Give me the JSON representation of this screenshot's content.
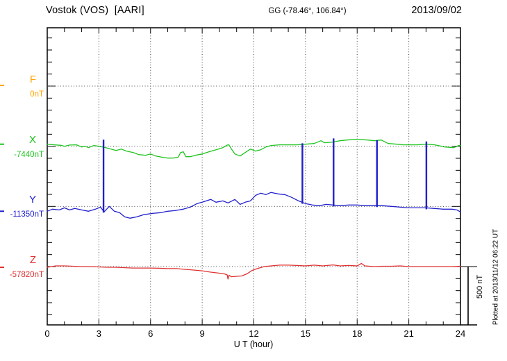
{
  "chart_data": {
    "type": "line",
    "title": "Vostok (VOS)  [AARI]",
    "subtitle": "GG (-78.46°, 106.84°)",
    "date": "2013/09/02",
    "xlabel": "U T (hour)",
    "x_range": [
      0,
      24
    ],
    "x_major_ticks": [
      0,
      3,
      6,
      9,
      12,
      15,
      18,
      21,
      24
    ],
    "x_minor_tick_step_hours": 1,
    "y_tick_step_nT": 100,
    "row_spacing_nT": 500,
    "grid": "dotted vertical line every 3 hours; dotted horizontal line at each component baseline",
    "legend_position": "left margin, one colored label per component",
    "scale_bar": {
      "label": "500 nT",
      "span_nT": 500
    },
    "plotted_at": "Plotted at 2013/11/12 06:22 UT",
    "series": [
      {
        "name": "F",
        "baseline_label": "0nT",
        "baseline_value_nT": 0,
        "color": "#FFA500",
        "edge_mark_offset_nT": 6,
        "points_hour_offset_nT": []
      },
      {
        "name": "X",
        "baseline_label": "-7440nT",
        "baseline_value_nT": -7440,
        "color": "#1FC41F",
        "edge_mark_offset_nT": 17,
        "points_hour_offset_nT": [
          [
            0,
            17
          ],
          [
            0.4,
            12
          ],
          [
            0.8,
            8
          ],
          [
            1,
            0
          ],
          [
            1.3,
            10
          ],
          [
            1.7,
            12
          ],
          [
            2,
            -6
          ],
          [
            2.2,
            0
          ],
          [
            2.4,
            -12
          ],
          [
            2.7,
            6
          ],
          [
            3,
            0
          ],
          [
            3.2,
            -6
          ],
          [
            3.4,
            -12
          ],
          [
            3.7,
            -23
          ],
          [
            4,
            -35
          ],
          [
            4.3,
            -23
          ],
          [
            4.6,
            -40
          ],
          [
            5,
            -52
          ],
          [
            5.3,
            -69
          ],
          [
            5.7,
            -75
          ],
          [
            6,
            -64
          ],
          [
            6.3,
            -81
          ],
          [
            6.7,
            -92
          ],
          [
            7,
            -98
          ],
          [
            7.3,
            -98
          ],
          [
            7.6,
            -92
          ],
          [
            7.75,
            -52
          ],
          [
            7.9,
            -46
          ],
          [
            8.05,
            -87
          ],
          [
            8.3,
            -87
          ],
          [
            8.6,
            -75
          ],
          [
            9,
            -64
          ],
          [
            9.4,
            -46
          ],
          [
            9.8,
            -29
          ],
          [
            10.2,
            -12
          ],
          [
            10.45,
            10
          ],
          [
            10.55,
            12
          ],
          [
            10.7,
            -23
          ],
          [
            10.9,
            -64
          ],
          [
            11.2,
            -81
          ],
          [
            11.5,
            -52
          ],
          [
            11.8,
            -23
          ],
          [
            12.1,
            -40
          ],
          [
            12.4,
            -29
          ],
          [
            12.7,
            -6
          ],
          [
            13,
            6
          ],
          [
            13.5,
            12
          ],
          [
            14,
            12
          ],
          [
            14.5,
            12
          ],
          [
            15,
            17
          ],
          [
            15.5,
            23
          ],
          [
            15.9,
            46
          ],
          [
            16.1,
            29
          ],
          [
            16.4,
            32
          ],
          [
            16.6,
            35
          ],
          [
            17,
            46
          ],
          [
            17.4,
            52
          ],
          [
            18,
            58
          ],
          [
            18.6,
            52
          ],
          [
            19,
            46
          ],
          [
            19.4,
            52
          ],
          [
            19.8,
            23
          ],
          [
            20.3,
            17
          ],
          [
            20.7,
            12
          ],
          [
            21.5,
            12
          ],
          [
            22,
            17
          ],
          [
            22.5,
            12
          ],
          [
            23.1,
            -6
          ],
          [
            23.6,
            -12
          ],
          [
            23.9,
            6
          ],
          [
            24,
            6
          ]
        ]
      },
      {
        "name": "Y",
        "baseline_label": "-11350nT",
        "baseline_value_nT": -11350,
        "color": "#1F1FCC",
        "edge_mark_offset_nT": -40,
        "points_hour_offset_nT": [
          [
            0,
            -40
          ],
          [
            0.3,
            -23
          ],
          [
            0.7,
            -29
          ],
          [
            1,
            -12
          ],
          [
            1.3,
            -29
          ],
          [
            1.6,
            -17
          ],
          [
            2,
            -29
          ],
          [
            2.4,
            -40
          ],
          [
            2.8,
            -23
          ],
          [
            3.1,
            -6
          ],
          [
            3.3,
            -46
          ],
          [
            3.6,
            0
          ],
          [
            3.9,
            -40
          ],
          [
            4.2,
            -52
          ],
          [
            4.5,
            -87
          ],
          [
            4.8,
            -98
          ],
          [
            5.2,
            -87
          ],
          [
            5.6,
            -69
          ],
          [
            6.1,
            -58
          ],
          [
            6.6,
            -52
          ],
          [
            7,
            -40
          ],
          [
            7.4,
            -35
          ],
          [
            7.9,
            -23
          ],
          [
            8.3,
            -6
          ],
          [
            8.7,
            23
          ],
          [
            9,
            35
          ],
          [
            9.5,
            58
          ],
          [
            9.8,
            35
          ],
          [
            10.2,
            46
          ],
          [
            10.5,
            29
          ],
          [
            10.9,
            58
          ],
          [
            11.2,
            17
          ],
          [
            11.5,
            35
          ],
          [
            11.8,
            46
          ],
          [
            12.1,
            92
          ],
          [
            12.4,
            110
          ],
          [
            12.7,
            98
          ],
          [
            13,
            116
          ],
          [
            13.4,
            104
          ],
          [
            13.8,
            98
          ],
          [
            14.2,
            75
          ],
          [
            14.6,
            46
          ],
          [
            15,
            23
          ],
          [
            15.4,
            12
          ],
          [
            15.8,
            6
          ],
          [
            16.2,
            17
          ],
          [
            16.6,
            12
          ],
          [
            17,
            6
          ],
          [
            17.5,
            12
          ],
          [
            18,
            12
          ],
          [
            18.5,
            6
          ],
          [
            19,
            6
          ],
          [
            19.5,
            6
          ],
          [
            20,
            0
          ],
          [
            20.5,
            -6
          ],
          [
            21,
            -12
          ],
          [
            21.5,
            -12
          ],
          [
            22,
            -12
          ],
          [
            22.5,
            -17
          ],
          [
            23,
            -23
          ],
          [
            23.5,
            -23
          ],
          [
            23.8,
            -29
          ],
          [
            24,
            -46
          ]
        ],
        "spikes_hour_topOffset_nT": [
          [
            3.27,
            555
          ],
          [
            14.82,
            525
          ],
          [
            16.63,
            565
          ],
          [
            19.15,
            550
          ],
          [
            22.02,
            540
          ]
        ]
      },
      {
        "name": "Z",
        "baseline_label": "-57820nT",
        "baseline_value_nT": -57820,
        "color": "#E03030",
        "edge_mark_offset_nT": -6,
        "points_hour_offset_nT": [
          [
            0,
            -6
          ],
          [
            0.5,
            6
          ],
          [
            1,
            6
          ],
          [
            1.5,
            3
          ],
          [
            2,
            0
          ],
          [
            2.5,
            0
          ],
          [
            3,
            -3
          ],
          [
            3.5,
            -6
          ],
          [
            4,
            -6
          ],
          [
            4.5,
            -9
          ],
          [
            5,
            -12
          ],
          [
            5.5,
            -12
          ],
          [
            6,
            -12
          ],
          [
            6.5,
            -14
          ],
          [
            7,
            -17
          ],
          [
            7.5,
            -17
          ],
          [
            8,
            -23
          ],
          [
            8.5,
            -29
          ],
          [
            9,
            -35
          ],
          [
            9.5,
            -46
          ],
          [
            10,
            -55
          ],
          [
            10.3,
            -61
          ],
          [
            10.45,
            -69
          ],
          [
            10.5,
            -104
          ],
          [
            10.55,
            -72
          ],
          [
            10.7,
            -84
          ],
          [
            11,
            -81
          ],
          [
            11.3,
            -78
          ],
          [
            11.6,
            -60
          ],
          [
            11.9,
            -32
          ],
          [
            12.2,
            -17
          ],
          [
            12.6,
            0
          ],
          [
            13,
            6
          ],
          [
            13.5,
            12
          ],
          [
            14,
            12
          ],
          [
            14.5,
            9
          ],
          [
            15,
            6
          ],
          [
            15.5,
            12
          ],
          [
            16,
            6
          ],
          [
            16.6,
            14
          ],
          [
            17,
            6
          ],
          [
            17.5,
            9
          ],
          [
            18,
            6
          ],
          [
            18.25,
            26
          ],
          [
            18.45,
            6
          ],
          [
            19,
            0
          ],
          [
            19.5,
            3
          ],
          [
            20,
            3
          ],
          [
            20.5,
            6
          ],
          [
            21,
            0
          ],
          [
            21.5,
            0
          ],
          [
            22,
            0
          ],
          [
            22.5,
            0
          ],
          [
            23,
            0
          ],
          [
            23.5,
            0
          ],
          [
            24,
            3
          ]
        ]
      }
    ]
  }
}
